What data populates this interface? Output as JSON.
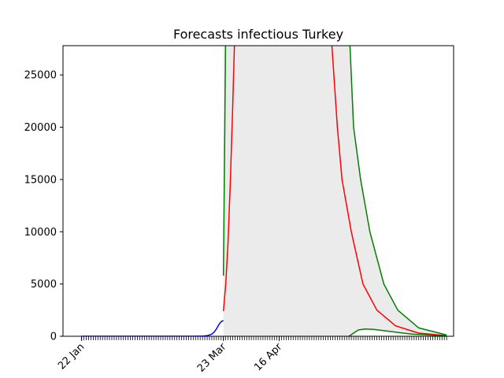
{
  "chart_data": {
    "type": "line",
    "title": "Forecasts infectious Turkey",
    "xlabel": "",
    "ylabel": "",
    "ylim": [
      0,
      27800
    ],
    "x_range": [
      "2020-01-14",
      "2020-06-30"
    ],
    "x_tick_labels": [
      {
        "date": "2020-01-22",
        "label": "22 Jan"
      },
      {
        "date": "2020-03-23",
        "label": "23 Mar"
      },
      {
        "date": "2020-04-16",
        "label": "16 Apr"
      }
    ],
    "minor_ticks": "daily",
    "y_ticks": [
      0,
      5000,
      10000,
      15000,
      20000,
      25000
    ],
    "grid": false,
    "legend": "none",
    "series": [
      {
        "color": "#0000ff",
        "role": "observed",
        "points": [
          [
            "2020-01-22",
            0
          ],
          [
            "2020-03-10",
            0
          ],
          [
            "2020-03-14",
            10
          ],
          [
            "2020-03-16",
            50
          ],
          [
            "2020-03-18",
            200
          ],
          [
            "2020-03-19",
            400
          ],
          [
            "2020-03-20",
            700
          ],
          [
            "2020-03-21",
            1100
          ],
          [
            "2020-03-22",
            1400
          ],
          [
            "2020-03-23",
            1500
          ]
        ]
      },
      {
        "color": "#ff0000",
        "role": "central forecast",
        "points": [
          [
            "2020-03-23",
            2400
          ],
          [
            "2020-03-24",
            5000
          ],
          [
            "2020-03-25",
            9000
          ],
          [
            "2020-03-26",
            15000
          ],
          [
            "2020-03-27",
            22000
          ],
          [
            "2020-03-28",
            30000
          ],
          [
            "2020-05-08",
            30000
          ],
          [
            "2020-05-11",
            20000
          ],
          [
            "2020-05-13",
            15000
          ],
          [
            "2020-05-17",
            10000
          ],
          [
            "2020-05-22",
            5000
          ],
          [
            "2020-05-28",
            2500
          ],
          [
            "2020-06-05",
            1000
          ],
          [
            "2020-06-15",
            300
          ],
          [
            "2020-06-27",
            60
          ]
        ]
      },
      {
        "color": "#008000",
        "role": "upper bound",
        "points": [
          [
            "2020-03-23",
            5800
          ],
          [
            "2020-03-24",
            30000
          ],
          [
            "2020-05-16",
            30000
          ],
          [
            "2020-05-18",
            20000
          ],
          [
            "2020-05-21",
            15000
          ],
          [
            "2020-05-25",
            10000
          ],
          [
            "2020-05-31",
            5000
          ],
          [
            "2020-06-06",
            2500
          ],
          [
            "2020-06-15",
            800
          ],
          [
            "2020-06-27",
            120
          ]
        ]
      },
      {
        "color": "#008000",
        "role": "lower bound",
        "points": [
          [
            "2020-05-16",
            0
          ],
          [
            "2020-05-18",
            300
          ],
          [
            "2020-05-20",
            600
          ],
          [
            "2020-05-23",
            700
          ],
          [
            "2020-05-27",
            650
          ],
          [
            "2020-06-03",
            450
          ],
          [
            "2020-06-12",
            200
          ],
          [
            "2020-06-27",
            40
          ]
        ]
      }
    ],
    "band": {
      "color": "#ebebeb",
      "upper": [
        [
          "2020-03-23",
          30000
        ],
        [
          "2020-05-16",
          30000
        ],
        [
          "2020-05-18",
          20000
        ],
        [
          "2020-05-21",
          15000
        ],
        [
          "2020-05-25",
          10000
        ],
        [
          "2020-05-31",
          5000
        ],
        [
          "2020-06-06",
          2500
        ],
        [
          "2020-06-15",
          800
        ],
        [
          "2020-06-27",
          120
        ]
      ],
      "lower": [
        [
          "2020-03-23",
          0
        ],
        [
          "2020-05-16",
          0
        ],
        [
          "2020-05-18",
          300
        ],
        [
          "2020-05-20",
          600
        ],
        [
          "2020-05-23",
          700
        ],
        [
          "2020-05-27",
          650
        ],
        [
          "2020-06-03",
          450
        ],
        [
          "2020-06-12",
          200
        ],
        [
          "2020-06-27",
          40
        ]
      ]
    }
  }
}
